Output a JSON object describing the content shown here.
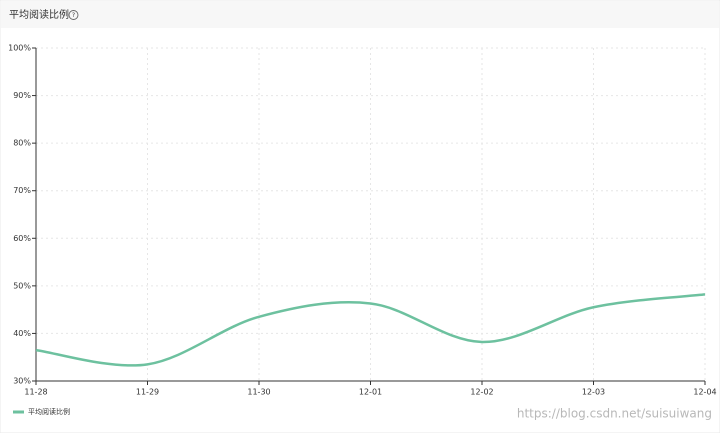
{
  "chart_data": {
    "type": "line",
    "title": "平均阅读比例",
    "help_icon": "?",
    "categories": [
      "11-28",
      "11-29",
      "11-30",
      "12-01",
      "12-02",
      "12-03",
      "12-04"
    ],
    "series": [
      {
        "name": "平均阅读比例",
        "color": "#6dc19f",
        "values": [
          36.5,
          33.5,
          43.5,
          46.3,
          38.2,
          45.5,
          48.2
        ]
      }
    ],
    "ylim": [
      30,
      100
    ],
    "yticks": [
      {
        "value": 30,
        "label": "30%"
      },
      {
        "value": 40,
        "label": "40%"
      },
      {
        "value": 50,
        "label": "50%"
      },
      {
        "value": 60,
        "label": "60%"
      },
      {
        "value": 70,
        "label": "70%"
      },
      {
        "value": 80,
        "label": "80%"
      },
      {
        "value": 90,
        "label": "90%"
      },
      {
        "value": 100,
        "label": "100%"
      }
    ],
    "grid": true,
    "legend": "bottom-left",
    "watermark": "https://blog.csdn.net/suisuiwang"
  }
}
